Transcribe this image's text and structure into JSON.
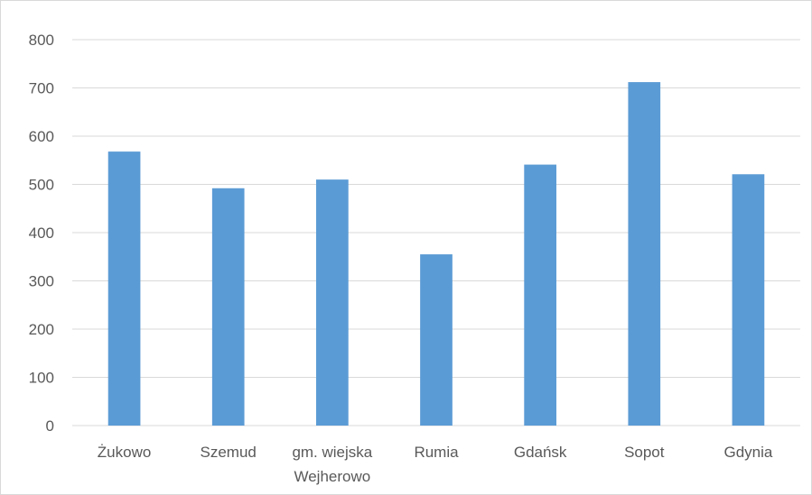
{
  "chart_data": {
    "type": "bar",
    "categories": [
      "Żukowo",
      "Szemud",
      "gm. wiejska Wejherowo",
      "Rumia",
      "Gdańsk",
      "Sopot",
      "Gdynia"
    ],
    "category_lines": [
      [
        "Żukowo"
      ],
      [
        "Szemud"
      ],
      [
        "gm. wiejska",
        "Wejherowo"
      ],
      [
        "Rumia"
      ],
      [
        "Gdańsk"
      ],
      [
        "Sopot"
      ],
      [
        "Gdynia"
      ]
    ],
    "values": [
      568,
      492,
      510,
      355,
      541,
      712,
      521
    ],
    "yticks": [
      0,
      100,
      200,
      300,
      400,
      500,
      600,
      700,
      800
    ],
    "ylim": [
      0,
      800
    ],
    "grid": true,
    "legend": "none",
    "title": "",
    "xlabel": "",
    "ylabel": "",
    "colors": {
      "bar": "#5b9bd5",
      "grid": "#d9d9d9",
      "text": "#595959"
    }
  }
}
